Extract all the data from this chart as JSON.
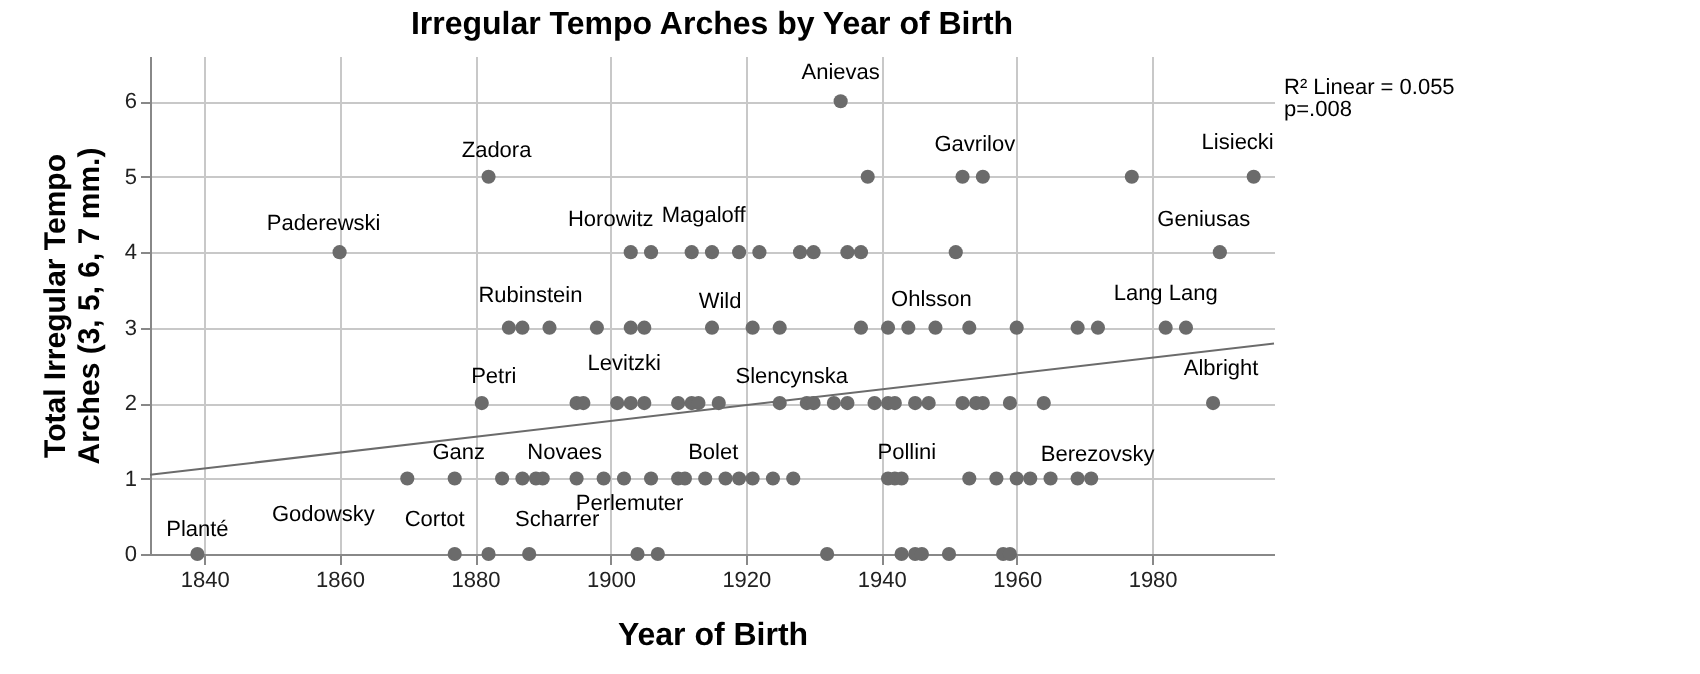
{
  "chart_data": {
    "type": "scatter",
    "title": "Irregular Tempo Arches by Year of Birth",
    "xlabel": "Year of Birth",
    "ylabel": "Total Irregular Tempo\nArches (3, 5, 6, 7 mm.)",
    "xlim": [
      1832,
      1998
    ],
    "xticks": [
      1840,
      1860,
      1880,
      1900,
      1920,
      1940,
      1960,
      1980
    ],
    "ylim": [
      0,
      6.6
    ],
    "yticks": [
      0,
      1,
      2,
      3,
      4,
      5,
      6
    ],
    "grid": true,
    "marker": "circle",
    "series": [
      {
        "color": "#6b6b6b",
        "x": [
          1839,
          1877,
          1882,
          1888,
          1904,
          1907,
          1932,
          1943,
          1945,
          1946,
          1950,
          1958,
          1959,
          1870,
          1877,
          1884,
          1887,
          1889,
          1890,
          1895,
          1899,
          1902,
          1906,
          1910,
          1911,
          1914,
          1917,
          1919,
          1921,
          1924,
          1927,
          1941,
          1942,
          1943,
          1953,
          1957,
          1960,
          1962,
          1965,
          1969,
          1971,
          1881,
          1895,
          1896,
          1901,
          1903,
          1905,
          1910,
          1912,
          1913,
          1916,
          1925,
          1929,
          1930,
          1933,
          1935,
          1939,
          1941,
          1942,
          1945,
          1947,
          1952,
          1954,
          1955,
          1959,
          1964,
          1989,
          1885,
          1887,
          1891,
          1898,
          1903,
          1905,
          1915,
          1921,
          1925,
          1937,
          1941,
          1944,
          1948,
          1953,
          1960,
          1969,
          1972,
          1982,
          1985,
          1860,
          1903,
          1906,
          1912,
          1915,
          1919,
          1922,
          1928,
          1930,
          1935,
          1937,
          1951,
          1990,
          1882,
          1938,
          1952,
          1955,
          1977,
          1995,
          1934
        ],
        "values": [
          0,
          0,
          0,
          0,
          0,
          0,
          0,
          0,
          0,
          0,
          0,
          0,
          0,
          1,
          1,
          1,
          1,
          1,
          1,
          1,
          1,
          1,
          1,
          1,
          1,
          1,
          1,
          1,
          1,
          1,
          1,
          1,
          1,
          1,
          1,
          1,
          1,
          1,
          1,
          1,
          1,
          2,
          2,
          2,
          2,
          2,
          2,
          2,
          2,
          2,
          2,
          2,
          2,
          2,
          2,
          2,
          2,
          2,
          2,
          2,
          2,
          2,
          2,
          2,
          2,
          2,
          2,
          3,
          3,
          3,
          3,
          3,
          3,
          3,
          3,
          3,
          3,
          3,
          3,
          3,
          3,
          3,
          3,
          3,
          3,
          3,
          4,
          4,
          4,
          4,
          4,
          4,
          4,
          4,
          4,
          4,
          4,
          4,
          4,
          5,
          5,
          5,
          5,
          5,
          5,
          6
        ]
      },
      {
        "type": "line",
        "color": "#6b6b6b",
        "marker": "none",
        "line_style": "solid",
        "x": [
          1832,
          1998
        ],
        "values": [
          1.05,
          2.79
        ]
      }
    ],
    "annotations": [
      {
        "text": "Planté",
        "x": 1839,
        "y": 0
      },
      {
        "text": "Godowsky",
        "x": 1870,
        "y": 1
      },
      {
        "text": "Ganz",
        "x": 1877,
        "y": 1
      },
      {
        "text": "Cortot",
        "x": 1877,
        "y": 0
      },
      {
        "text": "Scharrer",
        "x": 1888,
        "y": 0
      },
      {
        "text": "Zadora",
        "x": 1882,
        "y": 5
      },
      {
        "text": "Paderewski",
        "x": 1860,
        "y": 4
      },
      {
        "text": "Rubinstein",
        "x": 1887,
        "y": 3
      },
      {
        "text": "Petri",
        "x": 1881,
        "y": 2
      },
      {
        "text": "Horowitz",
        "x": 1903,
        "y": 4
      },
      {
        "text": "Magaloff",
        "x": 1912,
        "y": 4
      },
      {
        "text": "Levitzki",
        "x": 1905,
        "y": 3
      },
      {
        "text": "Wild",
        "x": 1915,
        "y": 3
      },
      {
        "text": "Novaes",
        "x": 1895,
        "y": 1
      },
      {
        "text": "Bolet",
        "x": 1914,
        "y": 1
      },
      {
        "text": "Perlemuter",
        "x": 1904,
        "y": 0
      },
      {
        "text": "Slencynska",
        "x": 1925,
        "y": 2
      },
      {
        "text": "Anievas",
        "x": 1934,
        "y": 6
      },
      {
        "text": "Gavrilov",
        "x": 1955,
        "y": 5
      },
      {
        "text": "Lisiecki",
        "x": 1995,
        "y": 5
      },
      {
        "text": "Geniusas",
        "x": 1990,
        "y": 4
      },
      {
        "text": "Ohlsson",
        "x": 1948,
        "y": 3
      },
      {
        "text": "Lang Lang",
        "x": 1982,
        "y": 3
      },
      {
        "text": "Pollini",
        "x": 1942,
        "y": 1
      },
      {
        "text": "Berezovsky",
        "x": 1969,
        "y": 1
      },
      {
        "text": "Albright",
        "x": 1989,
        "y": 2
      },
      "R² Linear = 0.055",
      "p=.008"
    ]
  }
}
